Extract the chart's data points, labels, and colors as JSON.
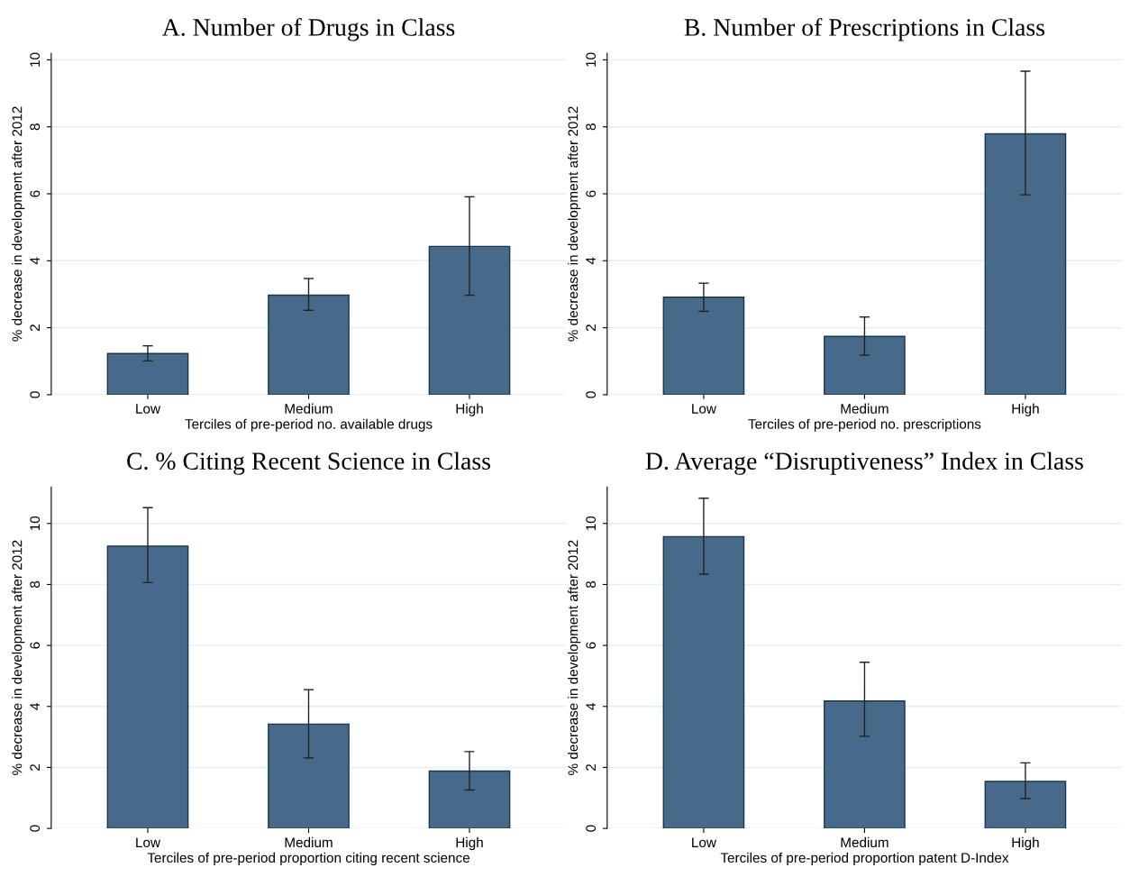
{
  "chart_data": [
    {
      "type": "bar",
      "title": "A. Number of Drugs in Class",
      "xlabel": "Terciles of pre-period no. available drugs",
      "ylabel": "% decrease in development after 2012",
      "categories": [
        "Low",
        "Medium",
        "High"
      ],
      "values": [
        1.23,
        2.97,
        4.43
      ],
      "errors": [
        [
          1.01,
          1.46
        ],
        [
          2.52,
          3.47
        ],
        [
          2.97,
          5.91
        ]
      ],
      "color": "#476a8b",
      "ylim": [
        0,
        10.2
      ],
      "yticks": [
        0,
        2,
        4,
        6,
        8,
        10
      ],
      "grid": "y"
    },
    {
      "type": "bar",
      "title": "B. Number of Prescriptions in Class",
      "xlabel": "Terciles of pre-period no. prescriptions",
      "ylabel": "% decrease in development after 2012",
      "categories": [
        "Low",
        "Medium",
        "High"
      ],
      "values": [
        2.91,
        1.74,
        7.79
      ],
      "errors": [
        [
          2.49,
          3.33
        ],
        [
          1.18,
          2.32
        ],
        [
          5.97,
          9.66
        ]
      ],
      "color": "#476a8b",
      "ylim": [
        0,
        10.2
      ],
      "yticks": [
        0,
        2,
        4,
        6,
        8,
        10
      ],
      "grid": "y"
    },
    {
      "type": "bar",
      "title": "C. % Citing Recent Science in Class",
      "xlabel": "Terciles of pre-period proportion citing recent science",
      "ylabel": "% decrease in development after 2012",
      "categories": [
        "Low",
        "Medium",
        "High"
      ],
      "values": [
        9.26,
        3.42,
        1.88
      ],
      "errors": [
        [
          8.06,
          10.52
        ],
        [
          2.31,
          4.55
        ],
        [
          1.26,
          2.52
        ]
      ],
      "color": "#476a8b",
      "ylim": [
        0,
        11.2
      ],
      "yticks": [
        0,
        2,
        4,
        6,
        8,
        10
      ],
      "grid": "y"
    },
    {
      "type": "bar",
      "title": "D. Average “Disruptiveness” Index in Class",
      "xlabel": "Terciles of pre-period proportion patent D-Index",
      "ylabel": "% decrease in development after 2012",
      "categories": [
        "Low",
        "Medium",
        "High"
      ],
      "values": [
        9.57,
        4.18,
        1.54
      ],
      "errors": [
        [
          8.34,
          10.83
        ],
        [
          3.02,
          5.45
        ],
        [
          0.98,
          2.15
        ]
      ],
      "color": "#476a8b",
      "ylim": [
        0,
        11.2
      ],
      "yticks": [
        0,
        2,
        4,
        6,
        8,
        10
      ],
      "grid": "y"
    }
  ]
}
